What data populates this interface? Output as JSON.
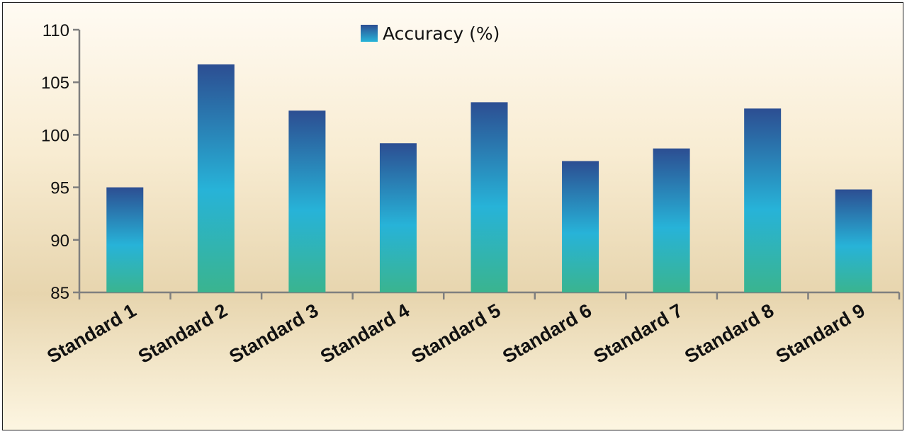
{
  "chart_data": {
    "type": "bar",
    "categories": [
      "Standard 1",
      "Standard 2",
      "Standard 3",
      "Standard 4",
      "Standard 5",
      "Standard 6",
      "Standard 7",
      "Standard 8",
      "Standard 9"
    ],
    "series": [
      {
        "name": "Accuracy (%)",
        "values": [
          95.0,
          106.7,
          102.3,
          99.2,
          103.1,
          97.5,
          98.7,
          102.5,
          94.8
        ]
      }
    ],
    "title": "",
    "xlabel": "",
    "ylabel": "",
    "ylim": [
      85,
      110
    ],
    "yticks": [
      "85",
      "90",
      "95",
      "100",
      "105",
      "110"
    ],
    "grid": false,
    "legend_position": "top-center",
    "colors": {
      "bar_top": "#2c4e92",
      "bar_mid": "#27b4d8",
      "bar_bottom": "#3bb592",
      "background_top": "#fffaf0",
      "background_mid": "#f4e4bf",
      "background_bottom": "#fdf5dc",
      "axis": "#7f7f7f"
    }
  }
}
